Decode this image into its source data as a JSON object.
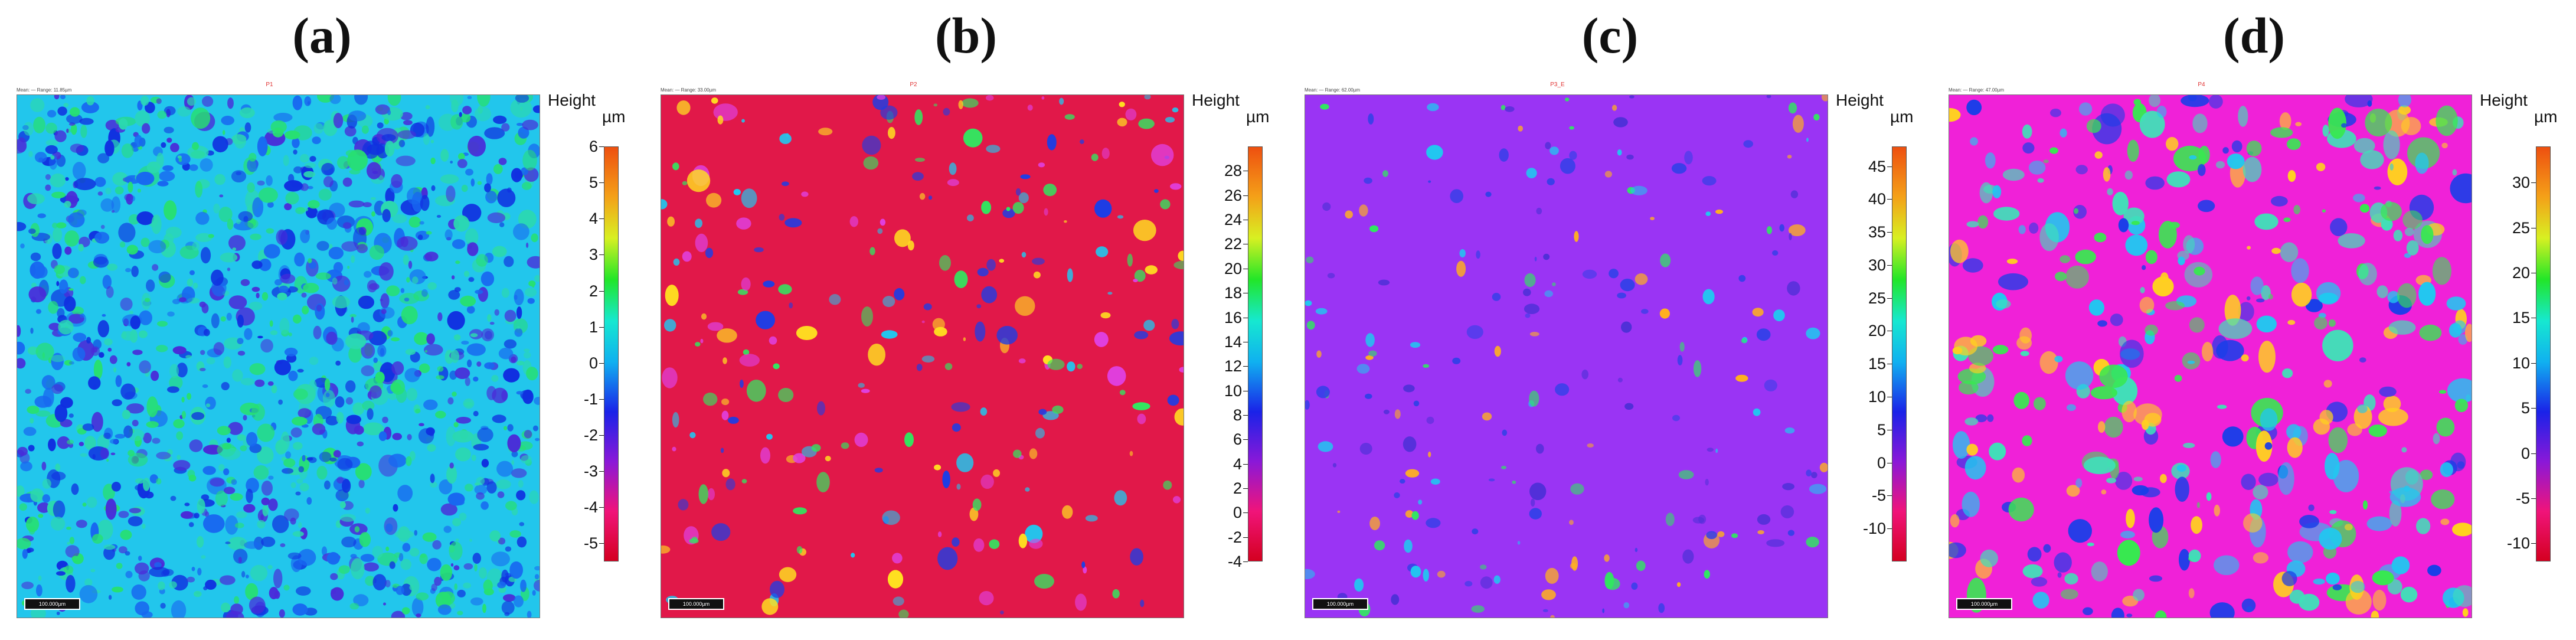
{
  "colorbar_title": "Height",
  "unit": "µm",
  "scale_bar_text": "100.000µm",
  "panels": [
    {
      "id": "a",
      "letter": "(a)",
      "sample_label": "P1",
      "meta_text": "Mean: — Range: 11.85µm",
      "background_color": "#22c6ec",
      "ticks": [
        "6",
        "5",
        "4",
        "3",
        "2",
        "1",
        "0",
        "-1",
        "-2",
        "-3",
        "-4",
        "-5"
      ],
      "tick_min": -5.5,
      "tick_max": 6,
      "pattern": "dense",
      "spot_colors": [
        "#1030e0",
        "#2bd8b0",
        "#27e070",
        "#1868f0",
        "#4a2ad8"
      ]
    },
    {
      "id": "b",
      "letter": "(b)",
      "sample_label": "P2",
      "meta_text": "Mean: — Range: 33.00µm",
      "background_color": "#e11849",
      "ticks": [
        "28",
        "26",
        "24",
        "22",
        "20",
        "18",
        "16",
        "14",
        "12",
        "10",
        "8",
        "6",
        "4",
        "2",
        "0",
        "-2",
        "-4"
      ],
      "tick_min": -4,
      "tick_max": 30,
      "pattern": "blobs",
      "spot_colors": [
        "#1a3ee8",
        "#20c8f0",
        "#30e860",
        "#e040e0",
        "#ffe020"
      ]
    },
    {
      "id": "c",
      "letter": "(c)",
      "sample_label": "P3_E",
      "meta_text": "Mean: — Range: 62.00µm",
      "background_color": "#9a34f4",
      "ticks": [
        "45",
        "40",
        "35",
        "30",
        "25",
        "20",
        "15",
        "10",
        "5",
        "0",
        "-5",
        "-10"
      ],
      "tick_min": -15,
      "tick_max": 48,
      "pattern": "sparse",
      "spot_colors": [
        "#3440e8",
        "#20c8f0",
        "#30e860",
        "#5030d8",
        "#ffb020"
      ]
    },
    {
      "id": "d",
      "letter": "(d)",
      "sample_label": "P4",
      "meta_text": "Mean: — Range: 47.00µm",
      "background_color": "#f021d8",
      "ticks": [
        "30",
        "25",
        "20",
        "15",
        "10",
        "5",
        "0",
        "-5",
        "-10"
      ],
      "tick_min": -12,
      "tick_max": 34,
      "pattern": "blobs-large",
      "spot_colors": [
        "#1a3ee8",
        "#20c8f0",
        "#38e850",
        "#40e0b8",
        "#ffd020"
      ]
    }
  ]
}
